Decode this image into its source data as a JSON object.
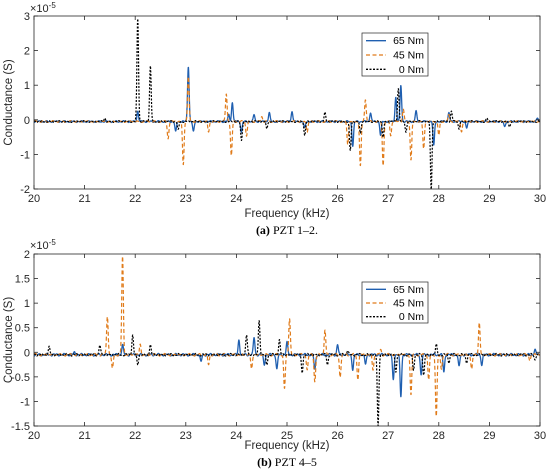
{
  "colors": {
    "s65": "#1f5fb0",
    "s45": "#e07b1a",
    "s0": "#000000",
    "axis": "#262626"
  },
  "chart_data": [
    {
      "type": "line",
      "caption_letter": "(a)",
      "caption_text": " PZT 1–2.",
      "xlabel": "Frequency (kHz)",
      "ylabel": "Conductance (S)",
      "exponent": "×10",
      "exponent_power": "-5",
      "xlim": [
        20,
        30
      ],
      "ylim": [
        -2,
        3
      ],
      "xticks": [
        20,
        21,
        22,
        23,
        24,
        25,
        26,
        27,
        28,
        29,
        30
      ],
      "yticks": [
        -2,
        -1,
        0,
        1,
        2,
        3
      ],
      "legend": "top-right",
      "series": [
        {
          "name": "65 Nm",
          "color_key": "s65",
          "dash": "",
          "peaks": [
            [
              22.05,
              0.3
            ],
            [
              22.8,
              -0.3
            ],
            [
              23.05,
              1.6
            ],
            [
              23.15,
              -0.3
            ],
            [
              23.85,
              0.2
            ],
            [
              23.92,
              0.55
            ],
            [
              24.1,
              -0.3
            ],
            [
              24.35,
              0.2
            ],
            [
              24.65,
              0.25
            ],
            [
              25.1,
              0.3
            ],
            [
              25.35,
              -0.2
            ],
            [
              26.3,
              -0.7
            ],
            [
              26.65,
              0.25
            ],
            [
              26.85,
              -0.4
            ],
            [
              27.15,
              0.7
            ],
            [
              27.25,
              1.05
            ],
            [
              27.55,
              0.3
            ],
            [
              27.9,
              -0.7
            ],
            [
              28.2,
              0.25
            ],
            [
              28.55,
              -0.2
            ],
            [
              29.3,
              -0.15
            ],
            [
              29.95,
              0.1
            ]
          ]
        },
        {
          "name": "45 Nm",
          "color_key": "s45",
          "dash": "4,2.5",
          "peaks": [
            [
              22.65,
              -0.5
            ],
            [
              22.95,
              -1.25
            ],
            [
              23.05,
              1.3
            ],
            [
              23.45,
              -0.3
            ],
            [
              23.8,
              0.8
            ],
            [
              23.9,
              -1.0
            ],
            [
              24.2,
              -0.4
            ],
            [
              24.5,
              0.15
            ],
            [
              25.4,
              -0.3
            ],
            [
              26.2,
              -0.65
            ],
            [
              26.45,
              -1.3
            ],
            [
              26.55,
              0.65
            ],
            [
              26.9,
              -1.25
            ],
            [
              27.05,
              -0.4
            ],
            [
              27.3,
              0.35
            ],
            [
              27.45,
              -1.1
            ],
            [
              27.7,
              -0.8
            ],
            [
              28.0,
              -0.4
            ],
            [
              28.2,
              0.2
            ],
            [
              28.45,
              -0.3
            ]
          ]
        },
        {
          "name": "0 Nm",
          "color_key": "s0",
          "dash": "2,1.5",
          "peaks": [
            [
              21.4,
              0.1
            ],
            [
              22.05,
              3.0
            ],
            [
              22.3,
              1.6
            ],
            [
              22.85,
              -0.25
            ],
            [
              24.1,
              -0.55
            ],
            [
              24.6,
              -0.2
            ],
            [
              25.35,
              -0.4
            ],
            [
              25.75,
              0.25
            ],
            [
              26.25,
              -0.85
            ],
            [
              26.45,
              -0.35
            ],
            [
              26.9,
              -0.45
            ],
            [
              27.2,
              0.95
            ],
            [
              27.35,
              -0.3
            ],
            [
              27.85,
              -1.95
            ],
            [
              28.25,
              0.3
            ],
            [
              28.4,
              -0.2
            ],
            [
              28.95,
              0.1
            ],
            [
              29.4,
              -0.15
            ]
          ]
        }
      ]
    },
    {
      "type": "line",
      "caption_letter": "(b)",
      "caption_text": " PZT 4–5",
      "xlabel": "Frequency (kHz)",
      "ylabel": "Conductance (S)",
      "exponent": "×10",
      "exponent_power": "-5",
      "xlim": [
        20,
        30
      ],
      "ylim": [
        -1.5,
        2
      ],
      "xticks": [
        20,
        21,
        22,
        23,
        24,
        25,
        26,
        27,
        28,
        29,
        30
      ],
      "yticks": [
        -1.5,
        -1,
        -0.5,
        0,
        0.5,
        1,
        1.5,
        2
      ],
      "legend": "top-right",
      "series": [
        {
          "name": "65 Nm",
          "color_key": "s65",
          "dash": "",
          "peaks": [
            [
              20.8,
              0.05
            ],
            [
              21.75,
              0.2
            ],
            [
              23.3,
              -0.15
            ],
            [
              24.05,
              0.3
            ],
            [
              24.35,
              0.35
            ],
            [
              24.55,
              -0.2
            ],
            [
              24.8,
              -0.3
            ],
            [
              25.0,
              0.25
            ],
            [
              25.55,
              -0.3
            ],
            [
              26.0,
              0.2
            ],
            [
              26.3,
              -0.3
            ],
            [
              26.55,
              -0.2
            ],
            [
              27.1,
              -0.5
            ],
            [
              27.25,
              -0.85
            ],
            [
              27.65,
              -0.4
            ],
            [
              28.1,
              -0.35
            ],
            [
              28.4,
              -0.25
            ],
            [
              28.85,
              -0.2
            ],
            [
              29.9,
              0.1
            ]
          ]
        },
        {
          "name": "45 Nm",
          "color_key": "s45",
          "dash": "4,2.5",
          "peaks": [
            [
              21.45,
              0.8
            ],
            [
              21.55,
              -0.3
            ],
            [
              21.75,
              2.0
            ],
            [
              22.1,
              0.2
            ],
            [
              23.45,
              -0.2
            ],
            [
              24.3,
              -0.3
            ],
            [
              24.95,
              -0.7
            ],
            [
              25.05,
              0.75
            ],
            [
              25.4,
              -0.3
            ],
            [
              25.55,
              -0.55
            ],
            [
              25.75,
              0.5
            ],
            [
              26.05,
              -0.45
            ],
            [
              26.4,
              -0.5
            ],
            [
              26.7,
              -0.3
            ],
            [
              26.85,
              0.1
            ],
            [
              27.45,
              -0.8
            ],
            [
              27.8,
              -0.5
            ],
            [
              27.95,
              -1.25
            ],
            [
              28.05,
              -0.3
            ],
            [
              28.65,
              -0.3
            ],
            [
              28.8,
              0.65
            ],
            [
              29.8,
              -0.1
            ]
          ]
        },
        {
          "name": "0 Nm",
          "color_key": "s0",
          "dash": "2,1.5",
          "peaks": [
            [
              20.3,
              0.15
            ],
            [
              21.3,
              0.2
            ],
            [
              21.95,
              0.4
            ],
            [
              22.05,
              -0.2
            ],
            [
              22.3,
              0.2
            ],
            [
              24.2,
              0.4
            ],
            [
              24.45,
              0.7
            ],
            [
              24.6,
              -0.2
            ],
            [
              24.85,
              0.3
            ],
            [
              25.3,
              -0.35
            ],
            [
              25.8,
              -0.2
            ],
            [
              26.2,
              0.1
            ],
            [
              26.8,
              -1.45
            ],
            [
              27.15,
              -0.35
            ],
            [
              27.5,
              -0.3
            ],
            [
              27.7,
              -0.4
            ],
            [
              27.95,
              0.2
            ],
            [
              28.2,
              -0.15
            ],
            [
              28.55,
              -0.15
            ],
            [
              29.9,
              -0.1
            ]
          ]
        }
      ]
    }
  ]
}
